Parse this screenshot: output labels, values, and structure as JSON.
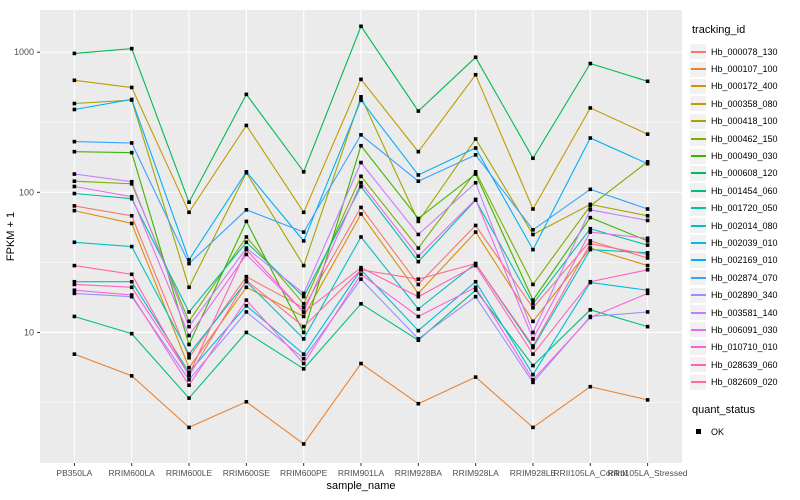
{
  "chart_data": {
    "type": "line",
    "title": "",
    "xlabel": "sample_name",
    "ylabel": "FPKM + 1",
    "x_categories": [
      "PB350LA",
      "RRIM600LA",
      "RRIM600LE",
      "RRIM600SE",
      "RRIM600PE",
      "RRIM901LA",
      "RRIM928BA",
      "RRIM928LA",
      "RRIM928LE",
      "RRII105LA_Control",
      "RRII105LA_Stressed"
    ],
    "y_scale": "log10",
    "ylim": [
      1.17,
      2000
    ],
    "y_ticks": [
      {
        "value": 10,
        "label": "10"
      },
      {
        "value": 100,
        "label": "100"
      },
      {
        "value": 1000,
        "label": "1000"
      }
    ],
    "y_minor_gridlines": [
      3.162,
      31.62,
      316.2
    ],
    "grid": true,
    "legend_position": "right",
    "panel_bg": "#EBEBEB",
    "grid_color": "#FFFFFF",
    "tick_color": "#333333",
    "tick_label_color": "#4D4D4D",
    "point_color": "#000000",
    "legends": {
      "tracking": {
        "title": "tracking_id"
      },
      "quant": {
        "title": "quant_status",
        "items": [
          "OK"
        ]
      }
    },
    "series": [
      {
        "name": "Hb_000078_130",
        "color": "#F8766D",
        "values": [
          80,
          68,
          6.6,
          25,
          15,
          78,
          22,
          58,
          15,
          45,
          34
        ]
      },
      {
        "name": "Hb_000107_100",
        "color": "#EA8331",
        "values": [
          7,
          4.9,
          2.1,
          3.2,
          1.6,
          6,
          3.1,
          4.8,
          2.1,
          4.1,
          3.3
        ]
      },
      {
        "name": "Hb_000172_400",
        "color": "#D89000",
        "values": [
          74,
          60,
          5.6,
          21,
          13,
          70,
          19,
          52,
          12,
          40,
          30
        ]
      },
      {
        "name": "Hb_000358_080",
        "color": "#C09B00",
        "values": [
          630,
          560,
          72,
          300,
          72,
          640,
          195,
          690,
          76,
          400,
          260
        ]
      },
      {
        "name": "Hb_000418_100",
        "color": "#A3A500",
        "values": [
          430,
          455,
          21,
          138,
          30,
          480,
          62,
          240,
          50,
          82,
          68
        ]
      },
      {
        "name": "Hb_000462_150",
        "color": "#7CAE00",
        "values": [
          120,
          115,
          12,
          48,
          16,
          130,
          40,
          140,
          22,
          80,
          165
        ]
      },
      {
        "name": "Hb_000490_030",
        "color": "#39B600",
        "values": [
          195,
          192,
          8.2,
          62,
          10,
          215,
          65,
          135,
          17,
          66,
          45
        ]
      },
      {
        "name": "Hb_000608_120",
        "color": "#00BB4E",
        "values": [
          980,
          1060,
          85,
          500,
          140,
          1530,
          380,
          920,
          175,
          830,
          620
        ]
      },
      {
        "name": "Hb_001454_060",
        "color": "#00BF7D",
        "values": [
          13,
          9.8,
          3.4,
          10,
          5.5,
          16,
          8.8,
          20,
          5.8,
          14.5,
          11
        ]
      },
      {
        "name": "Hb_001720_050",
        "color": "#00C1A3",
        "values": [
          98,
          90,
          14,
          44,
          18,
          110,
          32,
          88,
          16,
          55,
          42
        ]
      },
      {
        "name": "Hb_002014_080",
        "color": "#00C0C4",
        "values": [
          44,
          41,
          7,
          23,
          9,
          48,
          14.7,
          31,
          7.8,
          39,
          37
        ]
      },
      {
        "name": "Hb_002039_010",
        "color": "#00BAE0",
        "values": [
          23,
          23,
          5.2,
          15.5,
          7,
          28,
          10.3,
          23,
          5,
          22.7,
          20
        ]
      },
      {
        "name": "Hb_002169_010",
        "color": "#00B0F6",
        "values": [
          390,
          460,
          33,
          140,
          45,
          455,
          133,
          207,
          39,
          244,
          160
        ]
      },
      {
        "name": "Hb_002874_070",
        "color": "#35A2FF",
        "values": [
          230,
          225,
          31,
          75,
          52,
          257,
          120,
          185,
          54,
          105,
          76
        ]
      },
      {
        "name": "Hb_002890_340",
        "color": "#9590FF",
        "values": [
          19,
          18,
          4.6,
          14,
          6.5,
          24,
          9,
          18,
          4.4,
          13,
          14
        ]
      },
      {
        "name": "Hb_003581_140",
        "color": "#C77CFF",
        "values": [
          135,
          119,
          11,
          40,
          19,
          163,
          50,
          117,
          10,
          75,
          63
        ]
      },
      {
        "name": "Hb_006091_030",
        "color": "#E76BF3",
        "values": [
          110,
          93,
          9.5,
          36,
          14,
          117,
          35,
          89,
          9,
          52,
          47
        ]
      },
      {
        "name": "Hb_010710_010",
        "color": "#FA62DB",
        "values": [
          20,
          18.5,
          4.2,
          17,
          6,
          26,
          13,
          21,
          4.6,
          12.8,
          19
        ]
      },
      {
        "name": "Hb_028639_060",
        "color": "#FF62BC",
        "values": [
          22,
          21,
          5,
          39,
          13.9,
          29,
          18,
          30,
          7,
          23,
          28
        ]
      },
      {
        "name": "Hb_082609_020",
        "color": "#FF6A98",
        "values": [
          30,
          26,
          4.9,
          23.5,
          11,
          28,
          24,
          31,
          8,
          43,
          36
        ]
      }
    ]
  }
}
